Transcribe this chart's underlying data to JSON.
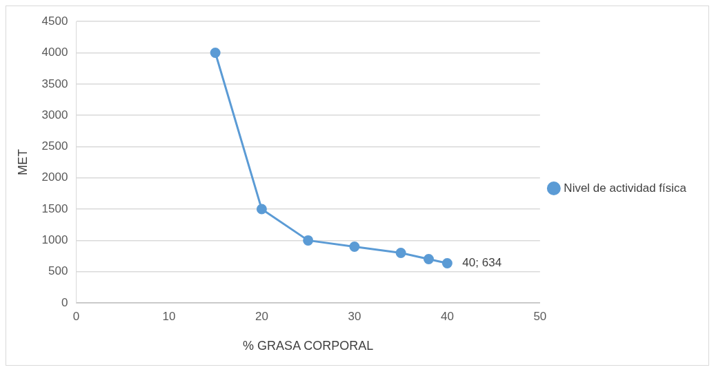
{
  "chart_data": {
    "type": "line",
    "xlabel": "% GRASA CORPORAL",
    "ylabel": "MET",
    "x": [
      15,
      20,
      25,
      30,
      35,
      38,
      40
    ],
    "series": [
      {
        "name": "Nivel de actividad física",
        "color": "#5b9bd5",
        "values": [
          4000,
          1500,
          1000,
          900,
          800,
          700,
          634
        ]
      }
    ],
    "xlim": [
      0,
      50
    ],
    "xticks": [
      0,
      10,
      20,
      30,
      40,
      50
    ],
    "ylim": [
      0,
      4500
    ],
    "yticks": [
      0,
      500,
      1000,
      1500,
      2000,
      2500,
      3000,
      3500,
      4000,
      4500
    ],
    "annotations": [
      {
        "text": "40; 634",
        "x": 40,
        "y": 634
      }
    ],
    "grid": "y",
    "legend": "right",
    "marker": "circle",
    "line_style": "solid"
  }
}
